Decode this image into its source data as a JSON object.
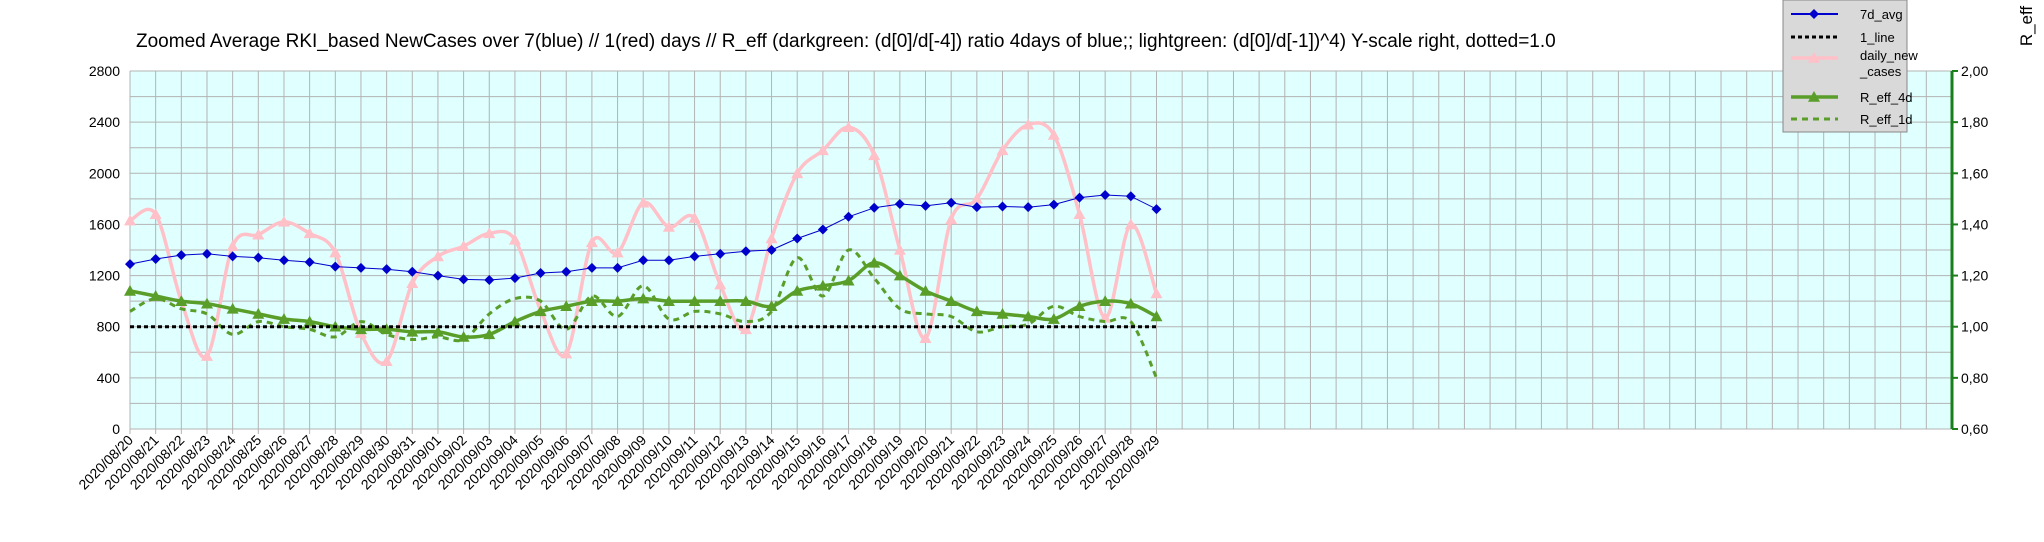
{
  "chart_data": {
    "type": "line",
    "title": "Zoomed Average RKI_based NewCases over 7(blue) // 1(red) days //  R_eff (darkgreen: (d[0]/d[-4]) ratio 4days of blue;; lightgreen: (d[0]/d[-1])^4) Y-scale right, dotted=1.0",
    "right_axis_label": "R_eff",
    "y_left": {
      "min": 0,
      "max": 2800,
      "ticks": [
        "0",
        "400",
        "800",
        "1200",
        "1600",
        "2000",
        "2400",
        "2800"
      ]
    },
    "y_right": {
      "min": 0.6,
      "max": 2.0,
      "ticks": [
        "0,60",
        "0,80",
        "1,00",
        "1,20",
        "1,40",
        "1,60",
        "1,80",
        "2,00"
      ]
    },
    "x_labels": [
      "2020/08/20",
      "2020/08/21",
      "2020/08/22",
      "2020/08/23",
      "2020/08/24",
      "2020/08/25",
      "2020/08/26",
      "2020/08/27",
      "2020/08/28",
      "2020/08/29",
      "2020/08/30",
      "2020/08/31",
      "2020/09/01",
      "2020/09/02",
      "2020/09/03",
      "2020/09/04",
      "2020/09/05",
      "2020/09/06",
      "2020/09/07",
      "2020/09/08",
      "2020/09/09",
      "2020/09/10",
      "2020/09/11",
      "2020/09/12",
      "2020/09/13",
      "2020/09/14",
      "2020/09/15",
      "2020/09/16",
      "2020/09/17",
      "2020/09/18",
      "2020/09/19",
      "2020/09/20",
      "2020/09/21",
      "2020/09/22",
      "2020/09/23",
      "2020/09/24",
      "2020/09/25",
      "2020/09/26",
      "2020/09/27",
      "2020/09/28",
      "2020/09/29"
    ],
    "total_slots": 71,
    "grid": true,
    "legend_position": "top-right",
    "series": [
      {
        "name": "7d_avg",
        "axis": "left",
        "color": "#0000cc",
        "width": 1,
        "dash": "",
        "marker": "diamond",
        "values": [
          1290,
          1330,
          1360,
          1370,
          1350,
          1340,
          1320,
          1305,
          1270,
          1260,
          1250,
          1230,
          1200,
          1170,
          1165,
          1180,
          1220,
          1230,
          1260,
          1260,
          1320,
          1320,
          1350,
          1370,
          1390,
          1400,
          1490,
          1560,
          1660,
          1730,
          1760,
          1745,
          1770,
          1735,
          1740,
          1735,
          1755,
          1810,
          1830,
          1820,
          1720
        ]
      },
      {
        "name": "1_line",
        "axis": "right",
        "color": "#000000",
        "width": 3,
        "dash": "4,3",
        "marker": "none",
        "values": [
          1.0,
          1.0,
          1.0,
          1.0,
          1.0,
          1.0,
          1.0,
          1.0,
          1.0,
          1.0,
          1.0,
          1.0,
          1.0,
          1.0,
          1.0,
          1.0,
          1.0,
          1.0,
          1.0,
          1.0,
          1.0,
          1.0,
          1.0,
          1.0,
          1.0,
          1.0,
          1.0,
          1.0,
          1.0,
          1.0,
          1.0,
          1.0,
          1.0,
          1.0,
          1.0,
          1.0,
          1.0,
          1.0,
          1.0,
          1.0,
          1.0
        ]
      },
      {
        "name": "daily_new_cases",
        "axis": "left",
        "color": "#ffc0c8",
        "width": 3.5,
        "dash": "",
        "marker": "triangle",
        "values": [
          1630,
          1680,
          1000,
          570,
          1430,
          1520,
          1620,
          1530,
          1380,
          750,
          530,
          1140,
          1350,
          1430,
          1530,
          1480,
          930,
          590,
          1460,
          1380,
          1770,
          1580,
          1650,
          1130,
          780,
          1490,
          2000,
          2180,
          2360,
          2140,
          1400,
          710,
          1640,
          1800,
          2180,
          2380,
          2300,
          1680,
          870,
          1600,
          1060
        ]
      },
      {
        "name": "R_eff_4d",
        "axis": "right",
        "color": "#5a9e2a",
        "width": 3.5,
        "dash": "",
        "marker": "triangle",
        "values": [
          1.14,
          1.12,
          1.1,
          1.09,
          1.07,
          1.05,
          1.03,
          1.02,
          1.0,
          0.99,
          0.99,
          0.98,
          0.98,
          0.96,
          0.97,
          1.02,
          1.06,
          1.08,
          1.1,
          1.1,
          1.11,
          1.1,
          1.1,
          1.1,
          1.1,
          1.08,
          1.14,
          1.16,
          1.18,
          1.25,
          1.2,
          1.14,
          1.1,
          1.06,
          1.05,
          1.04,
          1.03,
          1.08,
          1.1,
          1.09,
          1.04
        ]
      },
      {
        "name": "R_eff_1d",
        "axis": "right",
        "color": "#5a9e2a",
        "width": 3,
        "dash": "6,5",
        "marker": "none",
        "values": [
          1.06,
          1.11,
          1.07,
          1.05,
          0.97,
          1.02,
          1.0,
          0.99,
          0.96,
          1.02,
          0.97,
          0.95,
          0.96,
          0.95,
          1.05,
          1.11,
          1.1,
          0.99,
          1.12,
          1.04,
          1.16,
          1.03,
          1.06,
          1.05,
          1.02,
          1.06,
          1.27,
          1.12,
          1.3,
          1.19,
          1.07,
          1.05,
          1.04,
          0.98,
          1.0,
          1.01,
          1.08,
          1.04,
          1.02,
          1.02,
          0.8
        ]
      }
    ],
    "legend": [
      {
        "label": "7d_avg",
        "series": 0
      },
      {
        "label": "1_line",
        "series": 1
      },
      {
        "label": "daily_new_cases",
        "lines": [
          "daily_new",
          "_cases"
        ],
        "series": 2
      },
      {
        "label": "R_eff_4d",
        "series": 3
      },
      {
        "label": "R_eff_1d",
        "series": 4
      }
    ]
  }
}
